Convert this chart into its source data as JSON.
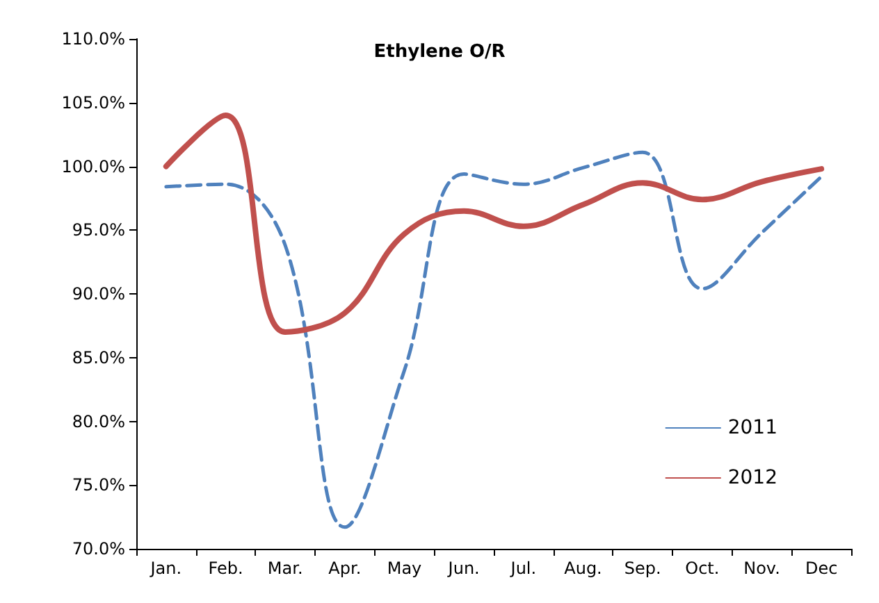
{
  "chart_data": {
    "type": "line",
    "title": "Ethylene O/R",
    "categories": [
      "Jan.",
      "Feb.",
      "Mar.",
      "Apr.",
      "May",
      "Jun.",
      "Jul.",
      "Aug.",
      "Sep.",
      "Oct.",
      "Nov.",
      "Dec"
    ],
    "series": [
      {
        "name": "2011",
        "color": "#4f81bd",
        "line_style": "dashed",
        "values": [
          98.4,
          98.6,
          93.8,
          71.7,
          84.0,
          99.4,
          98.6,
          99.9,
          101.1,
          90.4,
          94.8,
          99.2
        ]
      },
      {
        "name": "2012",
        "color": "#c0504d",
        "line_style": "solid",
        "values": [
          100.0,
          104.0,
          87.0,
          88.5,
          94.7,
          96.5,
          95.3,
          97.0,
          98.7,
          97.4,
          98.8,
          99.8
        ]
      }
    ],
    "ylim": [
      70,
      110
    ],
    "yticks": [
      {
        "value": 70,
        "label": "70.0%"
      },
      {
        "value": 75,
        "label": "75.0%"
      },
      {
        "value": 80,
        "label": "80.0%"
      },
      {
        "value": 85,
        "label": "85.0%"
      },
      {
        "value": 90,
        "label": "90.0%"
      },
      {
        "value": 95,
        "label": "95.0%"
      },
      {
        "value": 100,
        "label": "100.0%"
      },
      {
        "value": 105,
        "label": "105.0%"
      },
      {
        "value": 110,
        "label": "110.0%"
      }
    ],
    "grid": false,
    "legend": "bottom right",
    "marker": "none"
  }
}
